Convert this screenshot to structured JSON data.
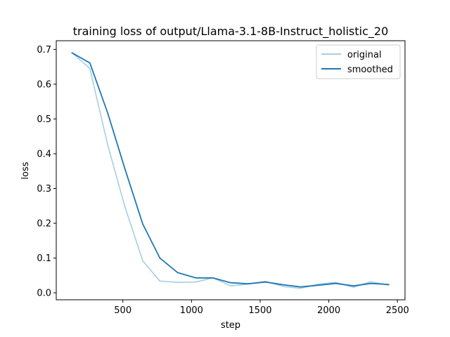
{
  "chart_data": {
    "type": "line",
    "title": "training loss of output/Llama-3.1-8B-Instruct_holistic_20",
    "xlabel": "step",
    "ylabel": "loss",
    "xlim": [
      15,
      2555
    ],
    "ylim": [
      -0.02,
      0.725
    ],
    "xticks": [
      500,
      1000,
      1500,
      2000,
      2500
    ],
    "yticks": [
      0.0,
      0.1,
      0.2,
      0.3,
      0.4,
      0.5,
      0.6,
      0.7
    ],
    "x": [
      130,
      260,
      390,
      515,
      645,
      770,
      900,
      1030,
      1155,
      1285,
      1410,
      1540,
      1670,
      1795,
      1925,
      2050,
      2180,
      2305,
      2435
    ],
    "series": [
      {
        "name": "original",
        "color": "#a6cee3",
        "values": [
          0.69,
          0.645,
          0.425,
          0.248,
          0.092,
          0.034,
          0.03,
          0.031,
          0.043,
          0.02,
          0.025,
          0.033,
          0.018,
          0.013,
          0.025,
          0.03,
          0.016,
          0.032,
          0.022
        ]
      },
      {
        "name": "smoothed",
        "color": "#1f78b4",
        "values": [
          0.69,
          0.661,
          0.517,
          0.357,
          0.198,
          0.1,
          0.058,
          0.043,
          0.043,
          0.029,
          0.026,
          0.031,
          0.023,
          0.017,
          0.022,
          0.027,
          0.02,
          0.027,
          0.024
        ]
      }
    ],
    "legend_position": "top-right",
    "grid": false
  }
}
